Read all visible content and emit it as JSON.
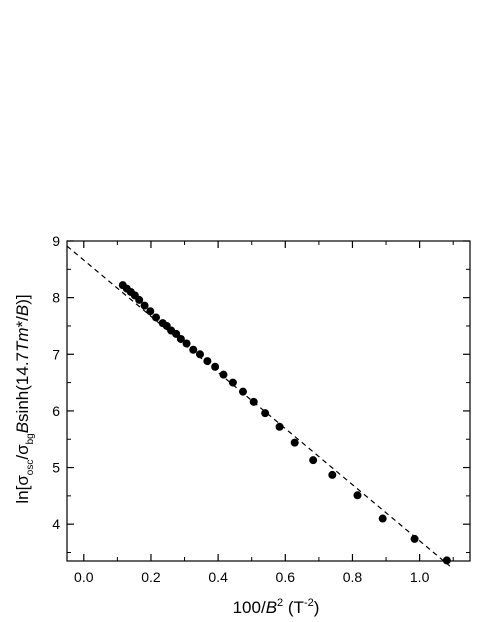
{
  "chart_data": {
    "type": "scatter",
    "title": "",
    "xlabel": "100/B² (T⁻²)",
    "xlabel_parts": {
      "prefix": "100/",
      "var": "B",
      "exp": "2",
      "unit_open": " (T",
      "unit_exp": "-2",
      "unit_close": ")"
    },
    "ylabel": "ln[σosc/σbgBsinh(14.7Tm*/B)]",
    "ylabel_parts": {
      "open": "ln[σ",
      "sub1": "osc",
      "slash": "/σ",
      "sub2": "bg",
      "B": "B",
      "sinh": "sinh(14.7",
      "T": "T",
      "m": "m",
      "star": "*/",
      "B2": "B",
      "close": ")]"
    },
    "xlim": [
      -0.05,
      1.15
    ],
    "ylim": [
      3.35,
      9.0
    ],
    "xticks": [
      0.0,
      0.2,
      0.4,
      0.6,
      0.8,
      1.0
    ],
    "xtick_labels": [
      "0.0",
      "0.2",
      "0.4",
      "0.6",
      "0.8",
      "1.0"
    ],
    "yticks": [
      4,
      5,
      6,
      7,
      8,
      9
    ],
    "ytick_labels": [
      "4",
      "5",
      "6",
      "7",
      "8",
      "9"
    ],
    "grid": false,
    "series": [
      {
        "style": "filled-circle",
        "color": "#000000",
        "x": [
          0.116,
          0.128,
          0.14,
          0.152,
          0.165,
          0.181,
          0.198,
          0.215,
          0.235,
          0.247,
          0.26,
          0.275,
          0.289,
          0.306,
          0.326,
          0.346,
          0.368,
          0.391,
          0.416,
          0.444,
          0.474,
          0.506,
          0.54,
          0.583,
          0.628,
          0.683,
          0.74,
          0.815,
          0.89,
          0.985,
          1.081
        ],
        "y": [
          8.22,
          8.16,
          8.1,
          8.04,
          7.96,
          7.86,
          7.76,
          7.65,
          7.55,
          7.5,
          7.42,
          7.36,
          7.27,
          7.19,
          7.08,
          7.0,
          6.88,
          6.78,
          6.64,
          6.5,
          6.34,
          6.16,
          5.96,
          5.72,
          5.44,
          5.13,
          4.87,
          4.51,
          4.1,
          3.74,
          3.36
        ]
      },
      {
        "style": "dashed-line",
        "color": "#000000",
        "x": [
          -0.05,
          1.09
        ],
        "y": [
          8.91,
          3.26
        ]
      }
    ]
  }
}
